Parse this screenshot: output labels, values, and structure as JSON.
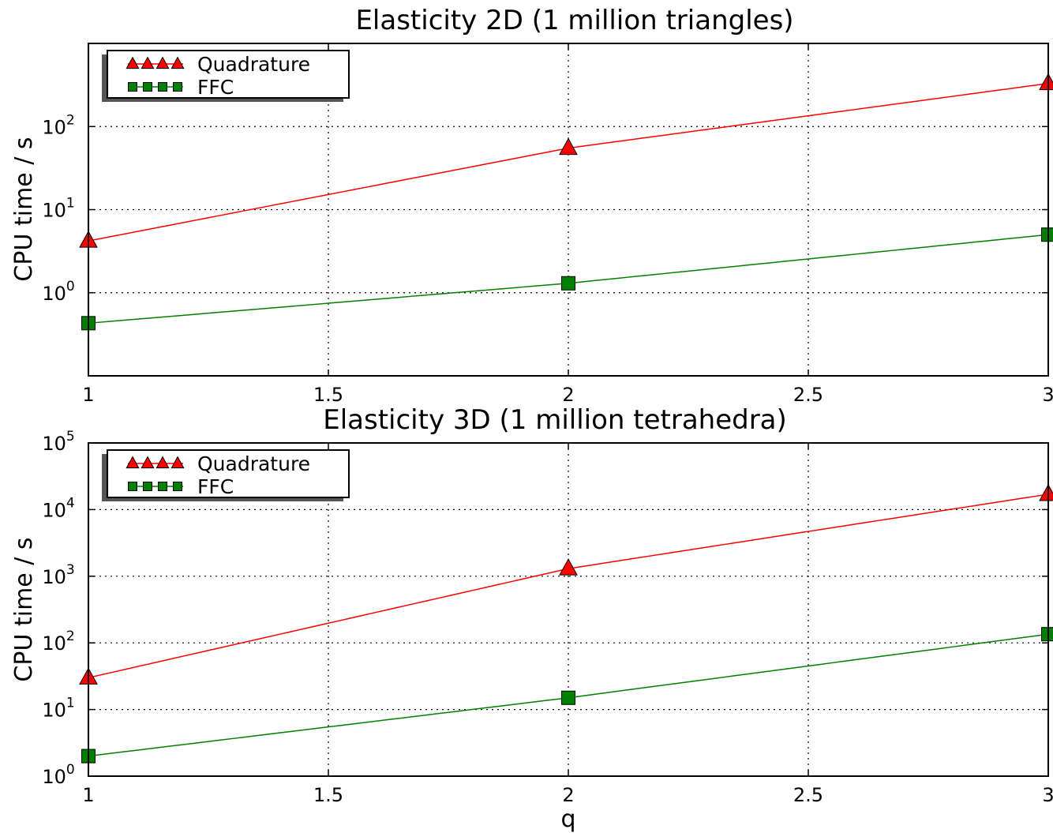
{
  "chart_data": [
    {
      "type": "line",
      "title": "Elasticity 2D (1 million triangles)",
      "xlabel": "",
      "ylabel": "CPU time / s",
      "xlim": [
        1,
        3
      ],
      "ylim": [
        0.1,
        1000
      ],
      "yscale": "log",
      "grid": true,
      "legend": "top-left",
      "xticks": [
        "1",
        "1.5",
        "2",
        "2.5",
        "3"
      ],
      "yticks": [
        {
          "base": "10",
          "exp": "0",
          "value": 1
        },
        {
          "base": "10",
          "exp": "1",
          "value": 10
        },
        {
          "base": "10",
          "exp": "2",
          "value": 100
        }
      ],
      "series": [
        {
          "name": "Quadrature",
          "color": "#ff0000",
          "marker": "triangle",
          "x": [
            1,
            2,
            3
          ],
          "values": [
            4.2,
            55,
            330
          ]
        },
        {
          "name": "FFC",
          "color": "#008000",
          "marker": "square",
          "x": [
            1,
            2,
            3
          ],
          "values": [
            0.43,
            1.3,
            5.0
          ]
        }
      ]
    },
    {
      "type": "line",
      "title": "Elasticity 3D (1 million tetrahedra)",
      "xlabel": "q",
      "ylabel": "CPU time / s",
      "xlim": [
        1,
        3
      ],
      "ylim": [
        1,
        100000
      ],
      "yscale": "log",
      "grid": true,
      "legend": "top-left",
      "xticks": [
        "1",
        "1.5",
        "2",
        "2.5",
        "3"
      ],
      "yticks": [
        {
          "base": "10",
          "exp": "0",
          "value": 1
        },
        {
          "base": "10",
          "exp": "1",
          "value": 10
        },
        {
          "base": "10",
          "exp": "2",
          "value": 100
        },
        {
          "base": "10",
          "exp": "3",
          "value": 1000
        },
        {
          "base": "10",
          "exp": "4",
          "value": 10000
        },
        {
          "base": "10",
          "exp": "5",
          "value": 100000
        }
      ],
      "series": [
        {
          "name": "Quadrature",
          "color": "#ff0000",
          "marker": "triangle",
          "x": [
            1,
            2,
            3
          ],
          "values": [
            30,
            1300,
            17000
          ]
        },
        {
          "name": "FFC",
          "color": "#008000",
          "marker": "square",
          "x": [
            1,
            2,
            3
          ],
          "values": [
            2.0,
            15,
            135
          ]
        }
      ]
    }
  ]
}
